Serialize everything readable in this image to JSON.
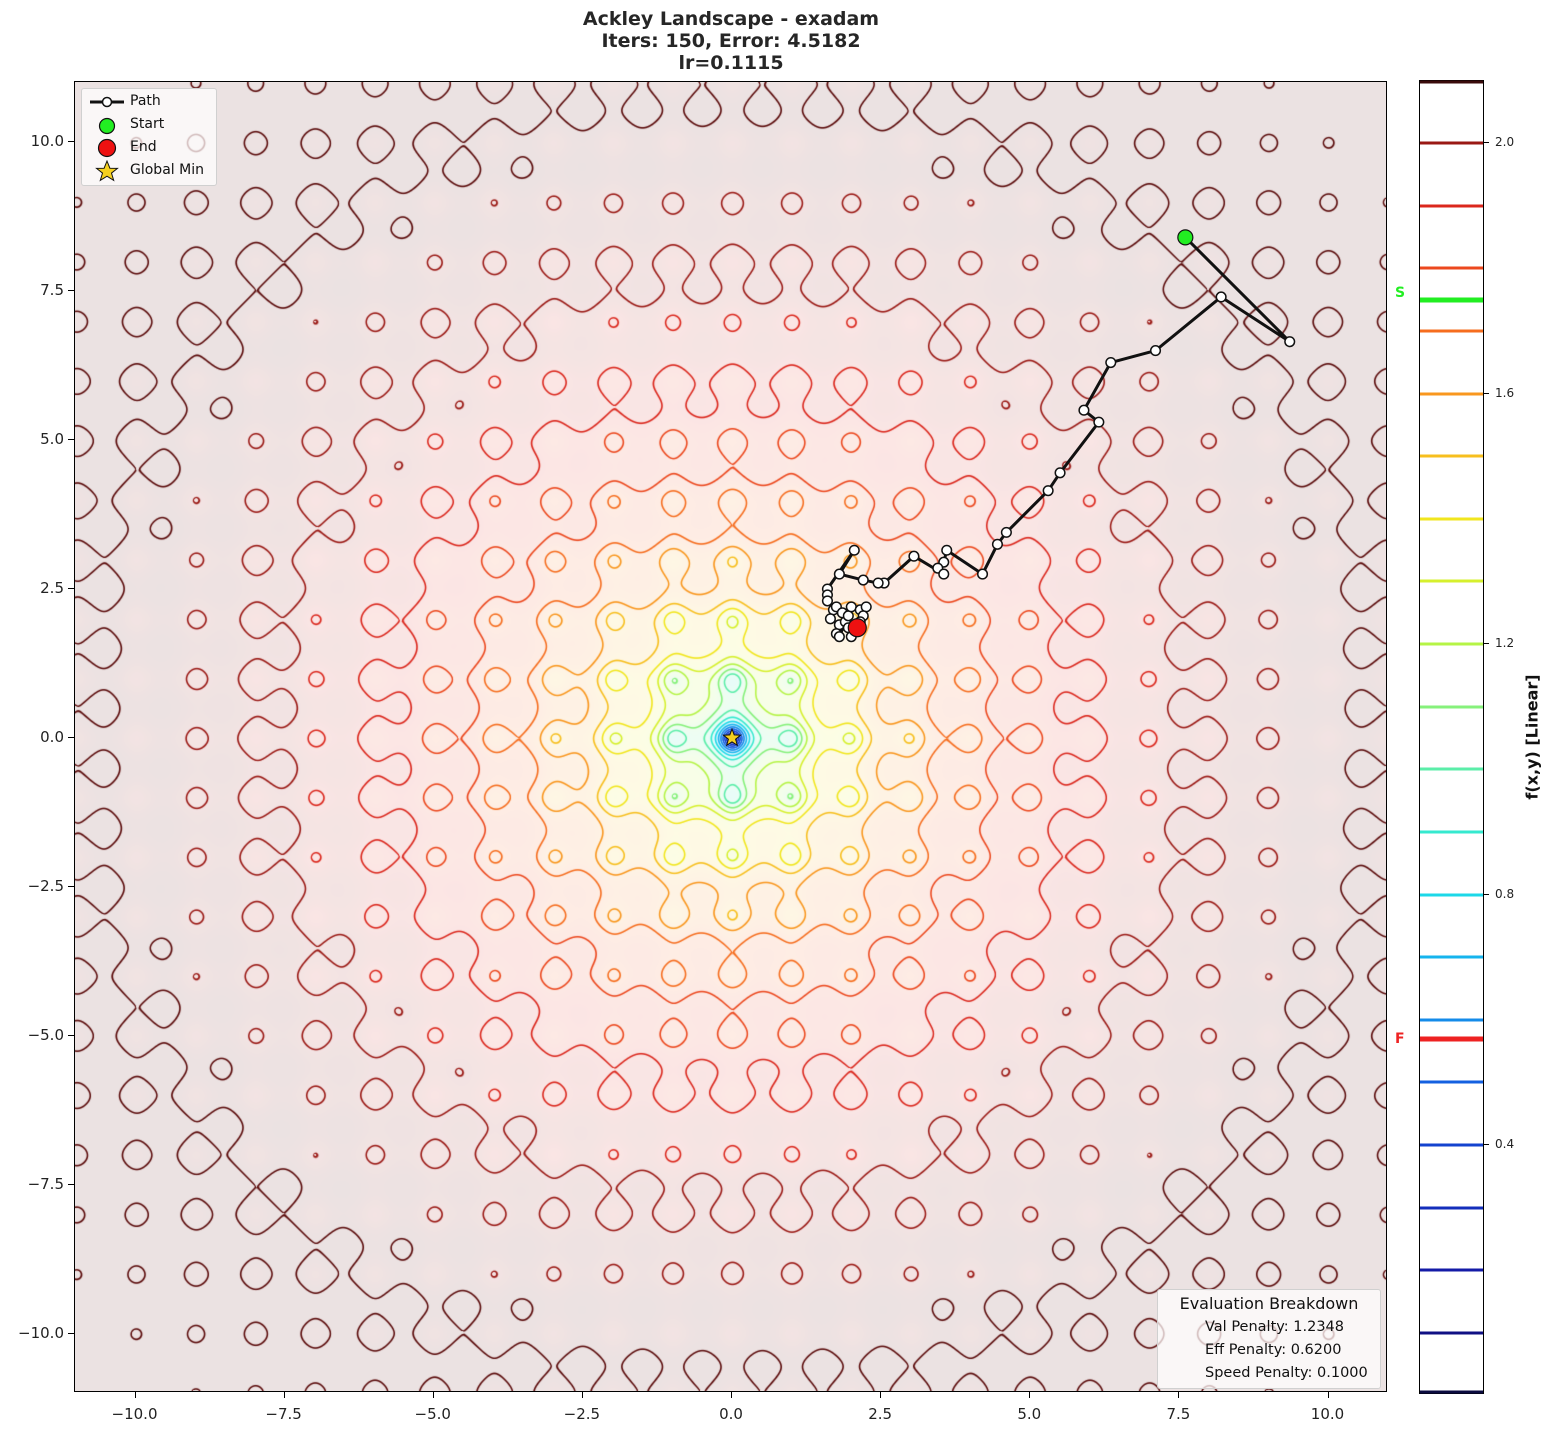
{
  "title": {
    "line1": "Ackley Landscape - exadam",
    "line2": "Iters: 150, Error: 4.5182",
    "line3": "lr=0.1115"
  },
  "chart_data": {
    "type": "contour",
    "title": "Ackley Landscape - exadam\nIters: 150, Error: 4.5182\nlr=0.1115",
    "function": "Ackley",
    "optimizer": "exadam",
    "iterations": 150,
    "error": 4.5182,
    "learning_rate": 0.1115,
    "xlabel": "",
    "ylabel": "",
    "xlim": [
      -11,
      11
    ],
    "ylim": [
      -11,
      11
    ],
    "x_ticks": [
      -10.0,
      -7.5,
      -5.0,
      -2.5,
      0.0,
      2.5,
      5.0,
      7.5,
      10.0
    ],
    "x_tick_labels": [
      "−10.0",
      "−7.5",
      "−5.0",
      "−2.5",
      "0.0",
      "2.5",
      "5.0",
      "7.5",
      "10.0"
    ],
    "y_ticks": [
      10.0,
      7.5,
      5.0,
      2.5,
      0.0,
      -2.5,
      -5.0,
      -7.5,
      -10.0
    ],
    "y_tick_labels": [
      "10.0",
      "7.5",
      "5.0",
      "2.5",
      "0.0",
      "−2.5",
      "−5.0",
      "−7.5",
      "−10.0"
    ],
    "grid": false,
    "start_point": [
      7.6,
      8.4
    ],
    "end_point": [
      2.1,
      1.85
    ],
    "global_min": [
      0.0,
      0.0
    ],
    "path": [
      [
        7.6,
        8.4
      ],
      [
        9.35,
        6.65
      ],
      [
        8.2,
        7.4
      ],
      [
        7.1,
        6.5
      ],
      [
        6.35,
        6.3
      ],
      [
        5.9,
        5.5
      ],
      [
        6.15,
        5.3
      ],
      [
        5.5,
        4.45
      ],
      [
        5.3,
        4.15
      ],
      [
        4.6,
        3.45
      ],
      [
        4.45,
        3.25
      ],
      [
        4.2,
        2.75
      ],
      [
        3.6,
        3.15
      ],
      [
        3.55,
        2.95
      ],
      [
        3.45,
        2.85
      ],
      [
        3.55,
        2.75
      ],
      [
        3.05,
        3.05
      ],
      [
        2.55,
        2.6
      ],
      [
        2.45,
        2.6
      ],
      [
        2.2,
        2.65
      ],
      [
        1.8,
        2.75
      ],
      [
        2.05,
        3.15
      ],
      [
        1.6,
        2.5
      ],
      [
        1.6,
        2.4
      ],
      [
        1.6,
        2.3
      ],
      [
        1.7,
        2.15
      ],
      [
        1.65,
        2.0
      ],
      [
        1.8,
        1.9
      ],
      [
        1.75,
        1.75
      ],
      [
        1.8,
        1.7
      ],
      [
        1.9,
        1.95
      ],
      [
        1.75,
        2.2
      ],
      [
        1.85,
        2.1
      ],
      [
        1.95,
        2.05
      ],
      [
        2.0,
        2.2
      ],
      [
        2.15,
        2.15
      ],
      [
        2.25,
        2.2
      ],
      [
        2.2,
        2.05
      ],
      [
        2.15,
        1.95
      ],
      [
        1.95,
        1.85
      ],
      [
        2.0,
        1.7
      ],
      [
        2.1,
        1.85
      ]
    ],
    "legend": {
      "position": "upper left",
      "entries": [
        "Path",
        "Start",
        "End",
        "Global Min"
      ]
    },
    "annotation_box": {
      "position": "lower right",
      "title": "Evaluation Breakdown",
      "lines": [
        "Val Penalty: 1.2348",
        "Eff Penalty: 0.6200",
        "Speed Penalty: 0.1000"
      ]
    },
    "colorbar": {
      "label": "f(x,y) [Linear]",
      "ticks": [
        0.4,
        0.8,
        1.2,
        1.6,
        2.0
      ],
      "range": [
        0.0,
        2.1
      ],
      "levels": [
        0.1,
        0.2,
        0.3,
        0.4,
        0.5,
        0.6,
        0.7,
        0.8,
        0.9,
        1.0,
        1.1,
        1.2,
        1.3,
        1.4,
        1.5,
        1.6,
        1.7,
        1.8,
        1.9,
        2.0,
        2.1
      ],
      "markers": [
        {
          "label": "S",
          "value": 1.75,
          "color": "#22ee22"
        },
        {
          "label": "F",
          "value": 0.57,
          "color": "#ee2222"
        }
      ],
      "colormap": "jet-like (dark blue → cyan → yellow → red → dark red)"
    }
  },
  "legend": {
    "path": "Path",
    "start": "Start",
    "end": "End",
    "global_min": "Global Min"
  },
  "breakdown": {
    "title": "Evaluation Breakdown",
    "val": "Val Penalty: 1.2348",
    "eff": "Eff Penalty: 0.6200",
    "speed": "Speed Penalty: 0.1000"
  },
  "colorbar": {
    "label": "f(x,y) [Linear]",
    "tick_labels": [
      "2.0",
      "1.6",
      "1.2",
      "0.8",
      "0.4"
    ],
    "marker_s": "S",
    "marker_f": "F"
  },
  "colors": {
    "start": "#22ee22",
    "end": "#ee1111",
    "star": "#f5d020",
    "path": "#111111"
  }
}
